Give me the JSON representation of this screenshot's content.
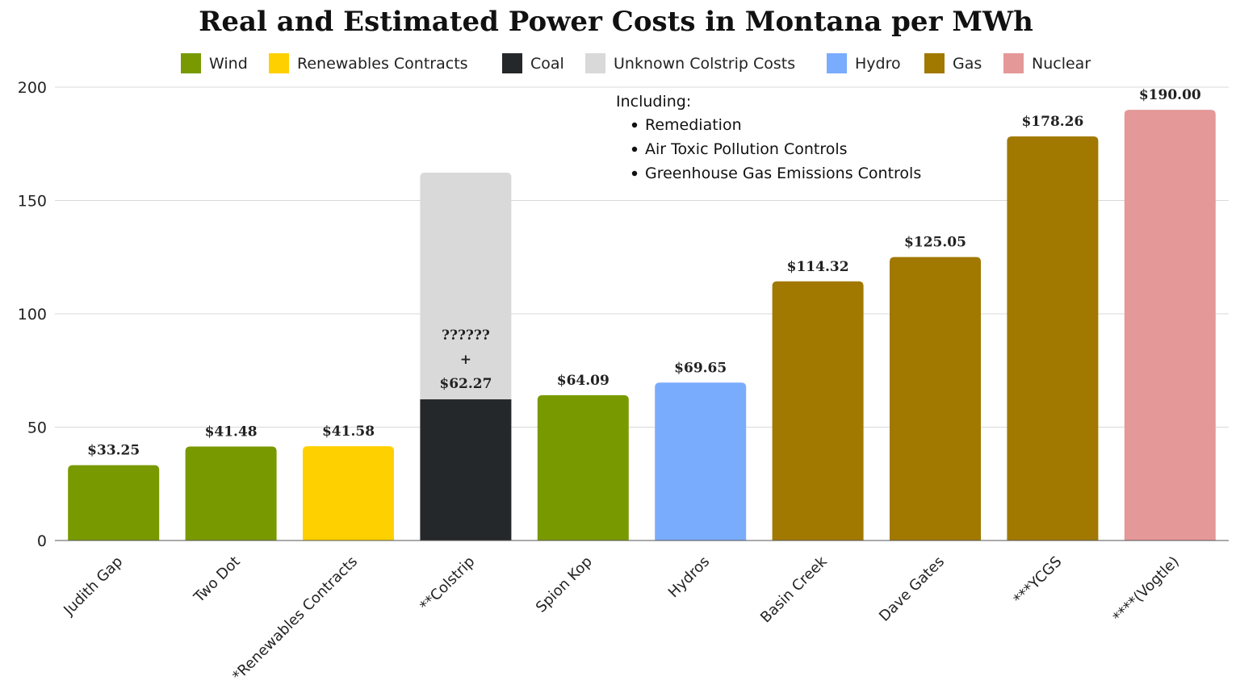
{
  "chart_data": {
    "type": "bar",
    "title": "Real and Estimated Power Costs in Montana per MWh",
    "ylim": [
      0,
      200
    ],
    "yticks": [
      0,
      50,
      100,
      150,
      200
    ],
    "grid": true,
    "legend_position": "top",
    "legend": [
      {
        "name": "Wind",
        "color": "#789a00"
      },
      {
        "name": "Renewables Contracts",
        "color": "#ffd000"
      },
      {
        "name": "Coal",
        "color": "#25282a"
      },
      {
        "name": "Unknown Colstrip Costs",
        "color": "#d9d9d9"
      },
      {
        "name": "Hydro",
        "color": "#7aacfd"
      },
      {
        "name": "Gas",
        "color": "#a17800"
      },
      {
        "name": "Nuclear",
        "color": "#e59898"
      }
    ],
    "categories": [
      "Judith Gap",
      "Two Dot",
      "*Renewables Contracts",
      "**Colstrip",
      "Spion Kop",
      "Hydros",
      "Basin Creek",
      "Dave Gates",
      "***YCGS",
      "****(Vogtle)"
    ],
    "bars": [
      {
        "category": "Judith Gap",
        "value": 33.25,
        "group": "Wind",
        "label": "$33.25"
      },
      {
        "category": "Two Dot",
        "value": 41.48,
        "group": "Wind",
        "label": "$41.48"
      },
      {
        "category": "*Renewables Contracts",
        "value": 41.58,
        "group": "Renewables Contracts",
        "label": "$41.58"
      },
      {
        "category": "**Colstrip",
        "value": 62.27,
        "group": "Coal",
        "stack": {
          "group": "Unknown Colstrip Costs",
          "value": 100
        },
        "label_lines": [
          "??????",
          "+",
          "$62.27"
        ]
      },
      {
        "category": "Spion Kop",
        "value": 64.09,
        "group": "Wind",
        "label": "$64.09"
      },
      {
        "category": "Hydros",
        "value": 69.65,
        "group": "Hydro",
        "label": "$69.65"
      },
      {
        "category": "Basin Creek",
        "value": 114.32,
        "group": "Gas",
        "label": "$114.32"
      },
      {
        "category": "Dave Gates",
        "value": 125.05,
        "group": "Gas",
        "label": "$125.05"
      },
      {
        "category": "***YCGS",
        "value": 178.26,
        "group": "Gas",
        "label": "$178.26"
      },
      {
        "category": "****(Vogtle)",
        "value": 190.0,
        "group": "Nuclear",
        "label": "$190.00"
      }
    ],
    "annotation": {
      "heading": "Including:",
      "items": [
        "Remediation",
        "Air Toxic Pollution Controls",
        "Greenhouse Gas Emissions Controls"
      ]
    }
  }
}
